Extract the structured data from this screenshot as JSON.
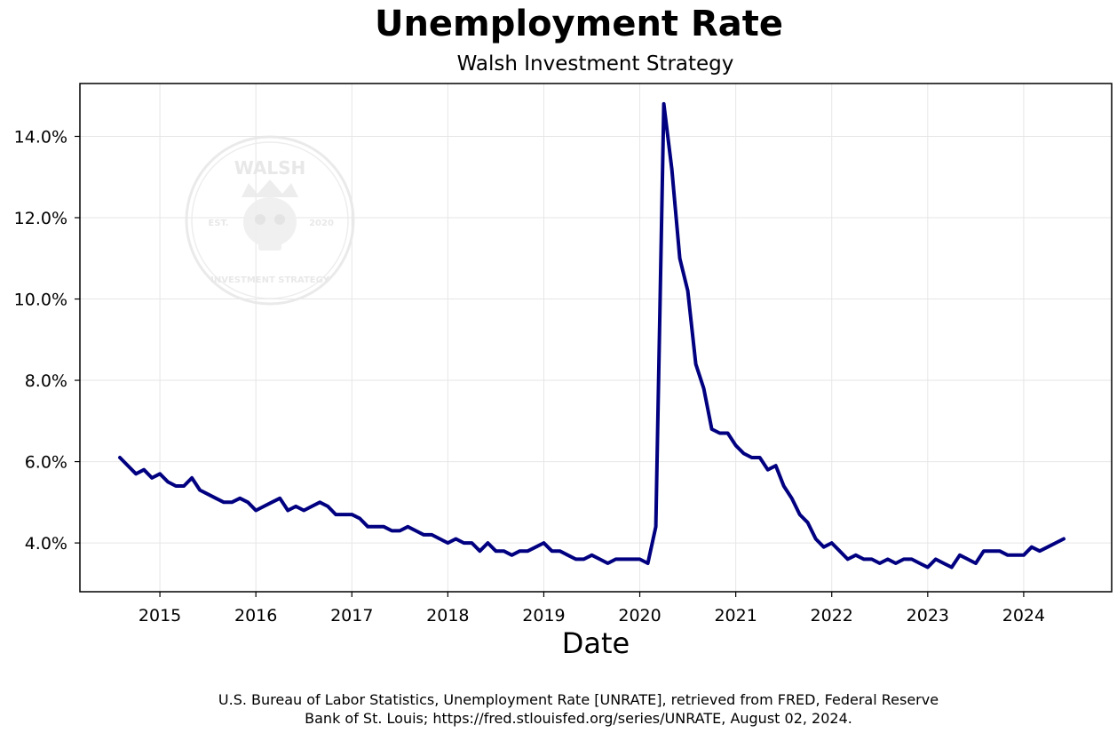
{
  "title": "Unemployment Rate",
  "subtitle": "Walsh Investment Strategy",
  "watermark": {
    "top_text": "WALSH",
    "bottom_text": "INVESTMENT STRATEGY",
    "left_text": "EST.",
    "right_text": "2020",
    "icon": "crowned-skull-icon"
  },
  "source": {
    "line1": "U.S. Bureau of Labor Statistics, Unemployment Rate [UNRATE], retrieved from FRED, Federal Reserve",
    "line2": "Bank of St. Louis; https://fred.stlouisfed.org/series/UNRATE, August 02, 2024."
  },
  "colors": {
    "line": "#000080",
    "grid": "#e6e6e6",
    "axes": "#000000"
  },
  "chart_data": {
    "type": "line",
    "xlabel": "Date",
    "ylabel": "",
    "grid": true,
    "x_ticks": [
      "2015",
      "2016",
      "2017",
      "2018",
      "2019",
      "2020",
      "2021",
      "2022",
      "2023",
      "2024"
    ],
    "y_ticks": [
      "4.0%",
      "6.0%",
      "8.0%",
      "10.0%",
      "12.0%",
      "14.0%"
    ],
    "xlim": [
      "2014-03",
      "2024-12"
    ],
    "ylim": [
      2.8,
      15.3
    ],
    "series": [
      {
        "x": [
          "2014-08",
          "2014-09",
          "2014-10",
          "2014-11",
          "2014-12",
          "2015-01",
          "2015-02",
          "2015-03",
          "2015-04",
          "2015-05",
          "2015-06",
          "2015-07",
          "2015-08",
          "2015-09",
          "2015-10",
          "2015-11",
          "2015-12",
          "2016-01",
          "2016-02",
          "2016-03",
          "2016-04",
          "2016-05",
          "2016-06",
          "2016-07",
          "2016-08",
          "2016-09",
          "2016-10",
          "2016-11",
          "2016-12",
          "2017-01",
          "2017-02",
          "2017-03",
          "2017-04",
          "2017-05",
          "2017-06",
          "2017-07",
          "2017-08",
          "2017-09",
          "2017-10",
          "2017-11",
          "2017-12",
          "2018-01",
          "2018-02",
          "2018-03",
          "2018-04",
          "2018-05",
          "2018-06",
          "2018-07",
          "2018-08",
          "2018-09",
          "2018-10",
          "2018-11",
          "2018-12",
          "2019-01",
          "2019-02",
          "2019-03",
          "2019-04",
          "2019-05",
          "2019-06",
          "2019-07",
          "2019-08",
          "2019-09",
          "2019-10",
          "2019-11",
          "2019-12",
          "2020-01",
          "2020-02",
          "2020-03",
          "2020-04",
          "2020-05",
          "2020-06",
          "2020-07",
          "2020-08",
          "2020-09",
          "2020-10",
          "2020-11",
          "2020-12",
          "2021-01",
          "2021-02",
          "2021-03",
          "2021-04",
          "2021-05",
          "2021-06",
          "2021-07",
          "2021-08",
          "2021-09",
          "2021-10",
          "2021-11",
          "2021-12",
          "2022-01",
          "2022-02",
          "2022-03",
          "2022-04",
          "2022-05",
          "2022-06",
          "2022-07",
          "2022-08",
          "2022-09",
          "2022-10",
          "2022-11",
          "2022-12",
          "2023-01",
          "2023-02",
          "2023-03",
          "2023-04",
          "2023-05",
          "2023-06",
          "2023-07",
          "2023-08",
          "2023-09",
          "2023-10",
          "2023-11",
          "2023-12",
          "2024-01",
          "2024-02",
          "2024-03",
          "2024-04",
          "2024-05",
          "2024-06"
        ],
        "values": [
          6.1,
          5.9,
          5.7,
          5.8,
          5.6,
          5.7,
          5.5,
          5.4,
          5.4,
          5.6,
          5.3,
          5.2,
          5.1,
          5.0,
          5.0,
          5.1,
          5.0,
          4.8,
          4.9,
          5.0,
          5.1,
          4.8,
          4.9,
          4.8,
          4.9,
          5.0,
          4.9,
          4.7,
          4.7,
          4.7,
          4.6,
          4.4,
          4.4,
          4.4,
          4.3,
          4.3,
          4.4,
          4.3,
          4.2,
          4.2,
          4.1,
          4.0,
          4.1,
          4.0,
          4.0,
          3.8,
          4.0,
          3.8,
          3.8,
          3.7,
          3.8,
          3.8,
          3.9,
          4.0,
          3.8,
          3.8,
          3.7,
          3.6,
          3.6,
          3.7,
          3.6,
          3.5,
          3.6,
          3.6,
          3.6,
          3.6,
          3.5,
          4.4,
          14.8,
          13.2,
          11.0,
          10.2,
          8.4,
          7.8,
          6.8,
          6.7,
          6.7,
          6.4,
          6.2,
          6.1,
          6.1,
          5.8,
          5.9,
          5.4,
          5.1,
          4.7,
          4.5,
          4.1,
          3.9,
          4.0,
          3.8,
          3.6,
          3.7,
          3.6,
          3.6,
          3.5,
          3.6,
          3.5,
          3.6,
          3.6,
          3.5,
          3.4,
          3.6,
          3.5,
          3.4,
          3.7,
          3.6,
          3.5,
          3.8,
          3.8,
          3.8,
          3.7,
          3.7,
          3.7,
          3.9,
          3.8,
          3.9,
          4.0,
          4.1
        ]
      }
    ]
  }
}
